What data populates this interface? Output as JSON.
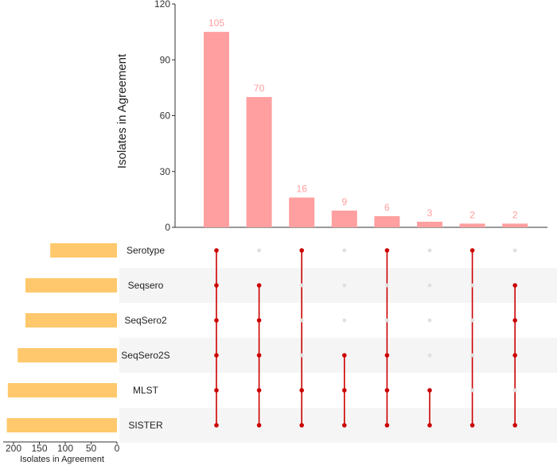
{
  "chart_data": {
    "type": "upset",
    "ylabel": "Isolates in Agreement",
    "ylim": [
      0,
      120
    ],
    "yticks": [
      "0",
      "30",
      "60",
      "90",
      "120"
    ],
    "intersections": [
      {
        "value": 105,
        "label": "105",
        "members": [
          "Serotype",
          "Seqsero",
          "SeqSero2",
          "SeqSero2S",
          "MLST",
          "SISTER"
        ]
      },
      {
        "value": 70,
        "label": "70",
        "members": [
          "Seqsero",
          "SeqSero2",
          "SeqSero2S",
          "MLST",
          "SISTER"
        ]
      },
      {
        "value": 16,
        "label": "16",
        "members": [
          "Serotype",
          "MLST",
          "SISTER"
        ]
      },
      {
        "value": 9,
        "label": "9",
        "members": [
          "SeqSero2S",
          "MLST",
          "SISTER"
        ]
      },
      {
        "value": 6,
        "label": "6",
        "members": [
          "Serotype",
          "SeqSero2S",
          "MLST",
          "SISTER"
        ]
      },
      {
        "value": 3,
        "label": "3",
        "members": [
          "MLST",
          "SISTER"
        ]
      },
      {
        "value": 2,
        "label": "2",
        "members": [
          "Serotype",
          "SISTER"
        ]
      },
      {
        "value": 2,
        "label": "2",
        "members": [
          "Seqsero",
          "SeqSero2",
          "SeqSero2S",
          "SISTER"
        ]
      }
    ],
    "sets": [
      {
        "name": "Serotype",
        "size": 129
      },
      {
        "name": "Seqsero",
        "size": 177
      },
      {
        "name": "SeqSero2",
        "size": 177
      },
      {
        "name": "SeqSero2S",
        "size": 192
      },
      {
        "name": "MLST",
        "size": 211
      },
      {
        "name": "SISTER",
        "size": 213
      }
    ],
    "set_axis": {
      "xlabel": "Isolates in Agreement",
      "xlim": [
        0,
        220
      ],
      "xticks": [
        200,
        150,
        100,
        50,
        0
      ],
      "xtick_labels": [
        "200",
        "150",
        "100",
        "50",
        "0"
      ]
    },
    "colors": {
      "intersection_bar": "#ff9fa0",
      "data_label": "#ff9c9c",
      "set_bar": "#ffc86c",
      "dot_active": "#cc0000",
      "dot_inactive": "#e0e0e0",
      "band": "#f5f5f5"
    },
    "grid": false
  }
}
